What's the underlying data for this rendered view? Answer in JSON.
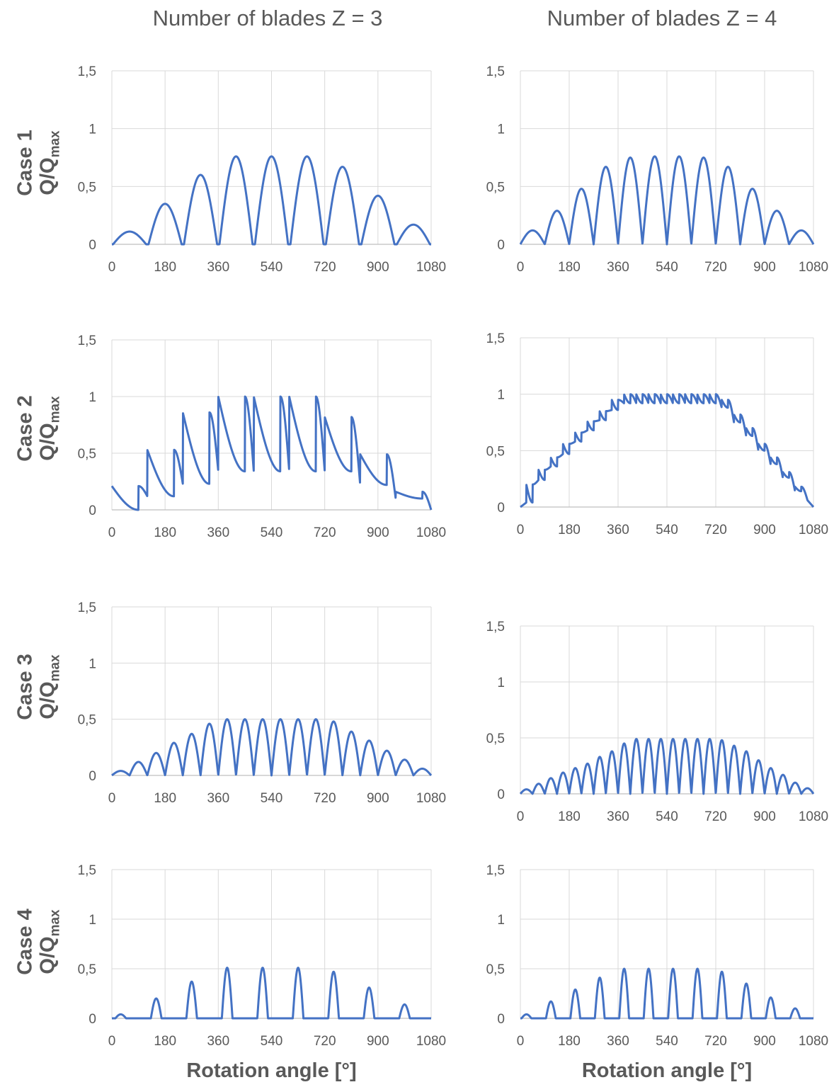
{
  "column_titles": [
    "Number of blades Z = 3",
    "Number of blades Z = 4"
  ],
  "row_labels": [
    {
      "case": "Case 1",
      "ylabel_main": "Q/Q",
      "ylabel_sub": "max"
    },
    {
      "case": "Case 2",
      "ylabel_main": "Q/Q",
      "ylabel_sub": "max"
    },
    {
      "case": "Case 3",
      "ylabel_main": "Q/Q",
      "ylabel_sub": "max"
    },
    {
      "case": "Case 4",
      "ylabel_main": "Q/Q",
      "ylabel_sub": "max"
    }
  ],
  "x_titles": [
    "Rotation angle [°]",
    "Rotation angle [°]"
  ],
  "colors": {
    "line": "#4472C4",
    "grid": "#d9d9d9",
    "text": "#595959"
  },
  "chart_data": [
    {
      "type": "line",
      "case": "Case 1",
      "blades": 3,
      "xlim": [
        0,
        1080
      ],
      "ylim": [
        0,
        1.5
      ],
      "xticks": [
        "0",
        "180",
        "360",
        "540",
        "720",
        "900",
        "1080"
      ],
      "yticks": [
        "0",
        "0,5",
        "1",
        "1,5"
      ],
      "grid": true,
      "peak_x": [
        60,
        180,
        300,
        420,
        540,
        660,
        780,
        900,
        1020
      ],
      "peak_y": [
        0.11,
        0.35,
        0.6,
        0.76,
        0.76,
        0.76,
        0.67,
        0.42,
        0.17
      ],
      "mode": "pulse",
      "half_width": 56
    },
    {
      "type": "line",
      "case": "Case 1",
      "blades": 4,
      "xlim": [
        0,
        1080
      ],
      "ylim": [
        0,
        1.5
      ],
      "xticks": [
        "0",
        "180",
        "360",
        "540",
        "720",
        "900",
        "1080"
      ],
      "yticks": [
        "0",
        "0,5",
        "1",
        "1,5"
      ],
      "grid": true,
      "peak_x": [
        45,
        135,
        225,
        315,
        405,
        495,
        585,
        675,
        765,
        855,
        945,
        1035
      ],
      "peak_y": [
        0.12,
        0.29,
        0.48,
        0.67,
        0.75,
        0.76,
        0.76,
        0.75,
        0.67,
        0.48,
        0.29,
        0.12
      ],
      "mode": "pulse",
      "half_width": 45
    },
    {
      "type": "line",
      "case": "Case 2",
      "blades": 3,
      "xlim": [
        0,
        1080
      ],
      "ylim": [
        0,
        1.5
      ],
      "xticks": [
        "0",
        "180",
        "360",
        "540",
        "720",
        "900",
        "1080"
      ],
      "yticks": [
        "0",
        "0,5",
        "1",
        "1,5"
      ],
      "grid": true,
      "peak_x": [
        90,
        210,
        330,
        450,
        570,
        690,
        810,
        930,
        1050
      ],
      "peak_y": [
        0.21,
        0.53,
        0.86,
        1.0,
        1.0,
        1.0,
        0.82,
        0.49,
        0.16
      ],
      "valley_x": [
        0,
        120,
        240,
        360,
        480,
        600,
        720,
        840,
        960,
        1080
      ],
      "valley_y": [
        0,
        0.12,
        0.23,
        0.34,
        0.34,
        0.34,
        0.34,
        0.22,
        0.1,
        0
      ],
      "mode": "wave"
    },
    {
      "type": "line",
      "case": "Case 2",
      "blades": 4,
      "xlim": [
        0,
        1080
      ],
      "ylim": [
        0,
        1.5
      ],
      "xticks": [
        "0",
        "180",
        "360",
        "540",
        "720",
        "900",
        "1080"
      ],
      "yticks": [
        "0",
        "0,5",
        "1",
        "1,5"
      ],
      "grid": true,
      "peak_x": [
        45,
        90,
        135,
        180,
        225,
        270,
        315,
        360,
        405,
        450,
        495,
        540,
        585,
        630,
        675,
        720,
        765,
        810,
        855,
        900,
        945,
        990,
        1035
      ],
      "peak_y": [
        0.2,
        0.33,
        0.44,
        0.56,
        0.66,
        0.76,
        0.85,
        0.95,
        1.0,
        1.0,
        1.0,
        1.0,
        1.0,
        1.0,
        1.0,
        1.0,
        0.95,
        0.82,
        0.7,
        0.56,
        0.44,
        0.31,
        0.18
      ],
      "valley_x": [
        0,
        22,
        67,
        112,
        157,
        202,
        247,
        292,
        337,
        382,
        427,
        472,
        517,
        562,
        607,
        652,
        697,
        742,
        787,
        832,
        877,
        922,
        967,
        1012,
        1058,
        1080
      ],
      "valley_y": [
        0,
        0.04,
        0.24,
        0.36,
        0.47,
        0.58,
        0.68,
        0.77,
        0.86,
        0.92,
        0.92,
        0.92,
        0.92,
        0.92,
        0.92,
        0.92,
        0.92,
        0.88,
        0.75,
        0.63,
        0.5,
        0.38,
        0.26,
        0.14,
        0.06,
        0
      ],
      "mode": "wave"
    },
    {
      "type": "line",
      "case": "Case 3",
      "blades": 3,
      "xlim": [
        0,
        1080
      ],
      "ylim": [
        0,
        1.5
      ],
      "xticks": [
        "0",
        "180",
        "360",
        "540",
        "720",
        "900",
        "1080"
      ],
      "yticks": [
        "0",
        "0,5",
        "1",
        "1,5"
      ],
      "grid": true,
      "peak_x": [
        30,
        90,
        150,
        210,
        270,
        330,
        390,
        450,
        510,
        570,
        630,
        690,
        750,
        810,
        870,
        930,
        990,
        1050
      ],
      "peak_y": [
        0.04,
        0.12,
        0.2,
        0.29,
        0.37,
        0.46,
        0.5,
        0.5,
        0.5,
        0.5,
        0.5,
        0.5,
        0.48,
        0.39,
        0.31,
        0.22,
        0.14,
        0.06
      ],
      "mode": "pulse",
      "half_width": 30
    },
    {
      "type": "line",
      "case": "Case 3",
      "blades": 4,
      "xlim": [
        0,
        1080
      ],
      "ylim": [
        0,
        1.5
      ],
      "xticks": [
        "0",
        "180",
        "360",
        "540",
        "720",
        "900",
        "1080"
      ],
      "yticks": [
        "0",
        "0,5",
        "1",
        "1,5"
      ],
      "grid": true,
      "peak_x": [
        22.5,
        67.5,
        112.5,
        157.5,
        202.5,
        247.5,
        292.5,
        337.5,
        382.5,
        427.5,
        472.5,
        517.5,
        562.5,
        607.5,
        652.5,
        697.5,
        742.5,
        787.5,
        832.5,
        877.5,
        922.5,
        967.5,
        1012.5,
        1057.5
      ],
      "peak_y": [
        0.04,
        0.09,
        0.14,
        0.19,
        0.23,
        0.27,
        0.33,
        0.38,
        0.45,
        0.49,
        0.49,
        0.49,
        0.49,
        0.49,
        0.49,
        0.49,
        0.48,
        0.43,
        0.38,
        0.3,
        0.23,
        0.17,
        0.1,
        0.05
      ],
      "mode": "pulse",
      "half_width": 22.5
    },
    {
      "type": "line",
      "case": "Case 4",
      "blades": 3,
      "xlim": [
        0,
        1080
      ],
      "ylim": [
        0,
        1.5
      ],
      "xticks": [
        "0",
        "180",
        "360",
        "540",
        "720",
        "900",
        "1080"
      ],
      "yticks": [
        "0",
        "0,5",
        "1",
        "1,5"
      ],
      "grid": true,
      "peak_x": [
        30,
        150,
        270,
        390,
        510,
        630,
        750,
        870,
        990
      ],
      "peak_y": [
        0.04,
        0.2,
        0.37,
        0.51,
        0.51,
        0.51,
        0.47,
        0.31,
        0.14
      ],
      "mode": "pulse",
      "half_width": 18
    },
    {
      "type": "line",
      "case": "Case 4",
      "blades": 4,
      "xlim": [
        0,
        1080
      ],
      "ylim": [
        0,
        1.5
      ],
      "xticks": [
        "0",
        "180",
        "360",
        "540",
        "720",
        "900",
        "1080"
      ],
      "yticks": [
        "0",
        "0,5",
        "1",
        "1,5"
      ],
      "grid": true,
      "peak_x": [
        22.5,
        112.5,
        202.5,
        292.5,
        382.5,
        472.5,
        562.5,
        652.5,
        742.5,
        832.5,
        922.5,
        1012.5
      ],
      "peak_y": [
        0.04,
        0.17,
        0.29,
        0.41,
        0.5,
        0.5,
        0.5,
        0.5,
        0.47,
        0.35,
        0.21,
        0.1
      ],
      "mode": "pulse",
      "half_width": 18
    }
  ]
}
